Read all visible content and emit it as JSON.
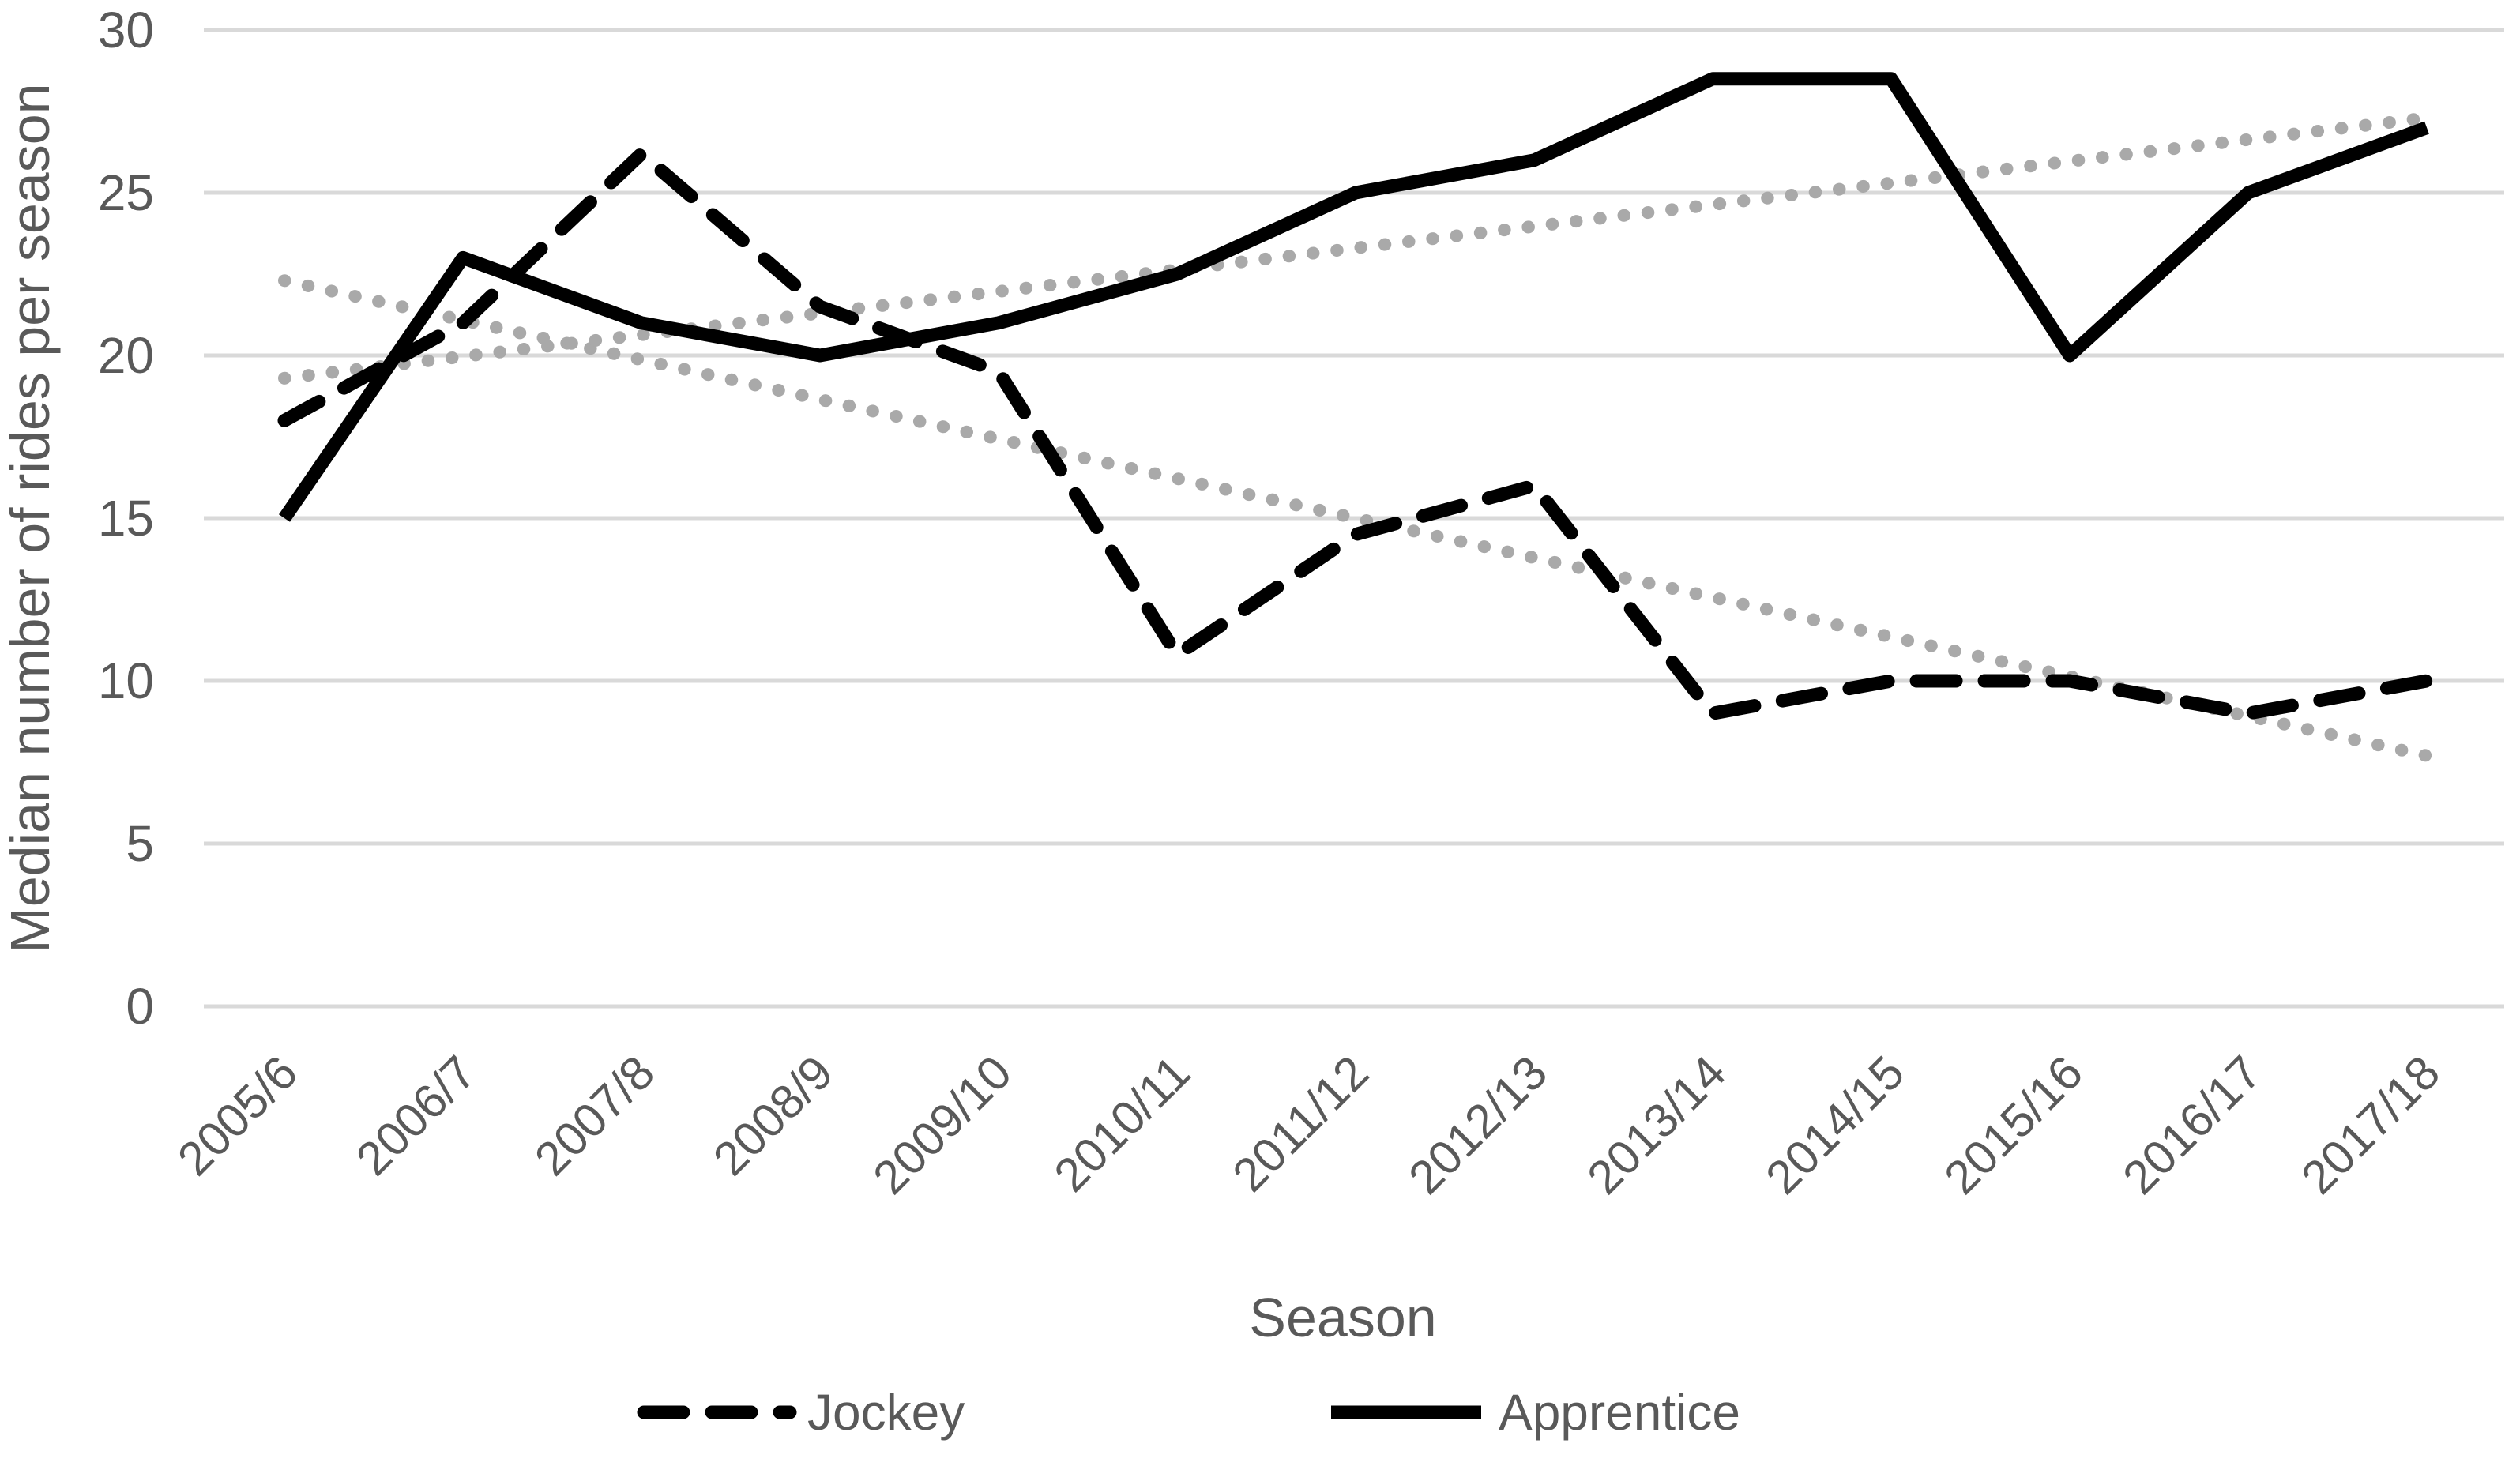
{
  "chart_data": {
    "type": "line",
    "title": "",
    "xlabel": "Season",
    "ylabel": "Median number of rides per season",
    "categories": [
      "2005/6",
      "2006/7",
      "2007/8",
      "2008/9",
      "2009/10",
      "2010/11",
      "2011/12",
      "2012/13",
      "2013/14",
      "2014/15",
      "2015/16",
      "2016/17",
      "2017/18"
    ],
    "ylim": [
      0,
      30
    ],
    "y_ticks": [
      30,
      25,
      20,
      15,
      10,
      5,
      0
    ],
    "grid": "horizontal-only",
    "legend_position": "bottom",
    "series": [
      {
        "name": "Jockey",
        "line_style": "dashed",
        "color": "#000000",
        "values": [
          18,
          21,
          26.2,
          21.5,
          19.5,
          10.8,
          14.5,
          16,
          9,
          10,
          10,
          9,
          10
        ]
      },
      {
        "name": "Apprentice",
        "line_style": "solid",
        "color": "#000000",
        "values": [
          15,
          23,
          21,
          20,
          21,
          22.5,
          25,
          26,
          28.5,
          28.5,
          20,
          25,
          27
        ]
      }
    ],
    "trendlines": [
      {
        "for": "Jockey",
        "style": "dotted",
        "color": "#a9a9a9",
        "start_value": 22.3,
        "end_value": 7.7
      },
      {
        "for": "Apprentice",
        "style": "dotted",
        "color": "#a9a9a9",
        "start_value": 19.3,
        "end_value": 27.3
      }
    ]
  },
  "legend": {
    "items": [
      {
        "label": "Jockey",
        "marker": "dashed-line"
      },
      {
        "label": "Apprentice",
        "marker": "solid-line"
      }
    ]
  },
  "colors": {
    "series": "#000000",
    "trendline": "#a9a9a9",
    "gridline": "#d9d9d9",
    "text": "#595959",
    "background": "#ffffff"
  }
}
